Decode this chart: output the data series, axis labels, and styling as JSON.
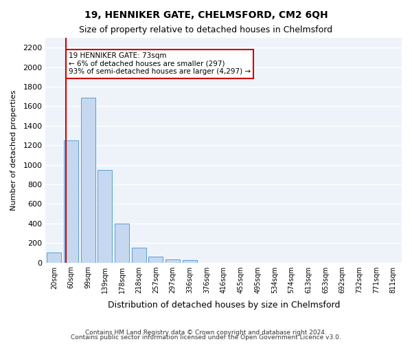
{
  "title": "19, HENNIKER GATE, CHELMSFORD, CM2 6QH",
  "subtitle": "Size of property relative to detached houses in Chelmsford",
  "xlabel": "Distribution of detached houses by size in Chelmsford",
  "ylabel": "Number of detached properties",
  "bar_color": "#c5d8f0",
  "bar_edge_color": "#5a9fd4",
  "background_color": "#ffffff",
  "plot_background_color": "#eef3fa",
  "grid_color": "#ffffff",
  "categories": [
    "20sqm",
    "60sqm",
    "99sqm",
    "139sqm",
    "178sqm",
    "218sqm",
    "257sqm",
    "297sqm",
    "336sqm",
    "376sqm",
    "416sqm",
    "455sqm",
    "495sqm",
    "534sqm",
    "574sqm",
    "613sqm",
    "653sqm",
    "692sqm",
    "732sqm",
    "771sqm",
    "811sqm"
  ],
  "values": [
    100,
    1250,
    1690,
    950,
    400,
    155,
    60,
    30,
    25,
    0,
    0,
    0,
    0,
    0,
    0,
    0,
    0,
    0,
    0,
    0,
    0
  ],
  "ylim": [
    0,
    2300
  ],
  "yticks": [
    0,
    200,
    400,
    600,
    800,
    1000,
    1200,
    1400,
    1600,
    1800,
    2000,
    2200
  ],
  "property_line_x": 1,
  "property_line_color": "#cc0000",
  "annotation_box_text": "19 HENNIKER GATE: 73sqm\n← 6% of detached houses are smaller (297)\n93% of semi-detached houses are larger (4,297) →",
  "annotation_box_edge_color": "#cc0000",
  "footer_line1": "Contains HM Land Registry data © Crown copyright and database right 2024.",
  "footer_line2": "Contains public sector information licensed under the Open Government Licence v3.0."
}
